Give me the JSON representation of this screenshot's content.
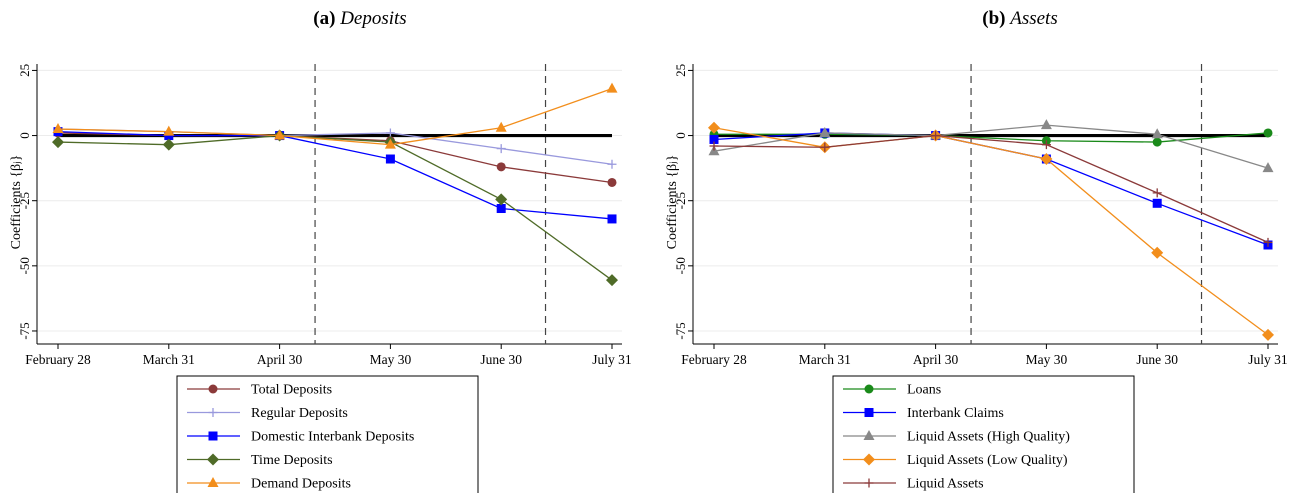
{
  "chart_data": [
    {
      "type": "line",
      "panel_label": "(a)",
      "title": "Deposits",
      "ylabel": "Coefficients {βⱼ}",
      "xlabel": "",
      "categories": [
        "February 28",
        "March 31",
        "April 30",
        "May 30",
        "June 30",
        "July 31"
      ],
      "yticks": [
        25,
        0,
        -25,
        -50,
        -75
      ],
      "ylim": [
        -80,
        29
      ],
      "vlines": [
        2.32,
        4.4
      ],
      "grid": true,
      "legend_position": "bottom",
      "series": [
        {
          "name": "Total Deposits",
          "color": "#8b3a3a",
          "marker": "circle",
          "values": [
            1,
            0,
            0,
            -2,
            -12,
            -18
          ]
        },
        {
          "name": "Regular Deposits",
          "color": "#9999dd",
          "marker": "plus",
          "values": [
            2.5,
            1.5,
            0,
            1,
            -5,
            -11
          ]
        },
        {
          "name": "Domestic Interbank Deposits",
          "color": "#0000ff",
          "marker": "square",
          "values": [
            1.5,
            0,
            0,
            -9,
            -28,
            -32
          ]
        },
        {
          "name": "Time Deposits",
          "color": "#4f6b28",
          "marker": "diamond",
          "values": [
            -2.5,
            -3.5,
            0,
            -2.5,
            -24.5,
            -55.5
          ]
        },
        {
          "name": "Demand Deposits",
          "color": "#f28e1c",
          "marker": "triangle",
          "values": [
            2.5,
            1.5,
            0,
            -3.5,
            3,
            18
          ]
        }
      ]
    },
    {
      "type": "line",
      "panel_label": "(b)",
      "title": "Assets",
      "ylabel": "Coefficients {βⱼ}",
      "xlabel": "",
      "categories": [
        "February 28",
        "March 31",
        "April 30",
        "May 30",
        "June 30",
        "July 31"
      ],
      "yticks": [
        25,
        0,
        -25,
        -50,
        -75
      ],
      "ylim": [
        -80,
        29
      ],
      "vlines": [
        2.32,
        4.4
      ],
      "grid": true,
      "legend_position": "bottom",
      "series": [
        {
          "name": "Loans",
          "color": "#1a8a1a",
          "marker": "circle",
          "values": [
            0.5,
            0.5,
            0,
            -2,
            -2.5,
            1
          ]
        },
        {
          "name": "Interbank Claims",
          "color": "#0000ff",
          "marker": "square",
          "values": [
            -1.5,
            1,
            0,
            -9,
            -26,
            -42
          ]
        },
        {
          "name": "Liquid Assets (High Quality)",
          "color": "#888888",
          "marker": "triangle",
          "values": [
            -6,
            1,
            0,
            4,
            0.5,
            -12.5
          ]
        },
        {
          "name": "Liquid Assets (Low Quality)",
          "color": "#f28e1c",
          "marker": "diamond",
          "values": [
            3,
            -4.5,
            0,
            -9,
            -45,
            -76.5
          ]
        },
        {
          "name": "Liquid Assets",
          "color": "#8b3a3a",
          "marker": "plus",
          "values": [
            -4,
            -4.5,
            0,
            -3.5,
            -22,
            -41
          ]
        }
      ]
    }
  ]
}
